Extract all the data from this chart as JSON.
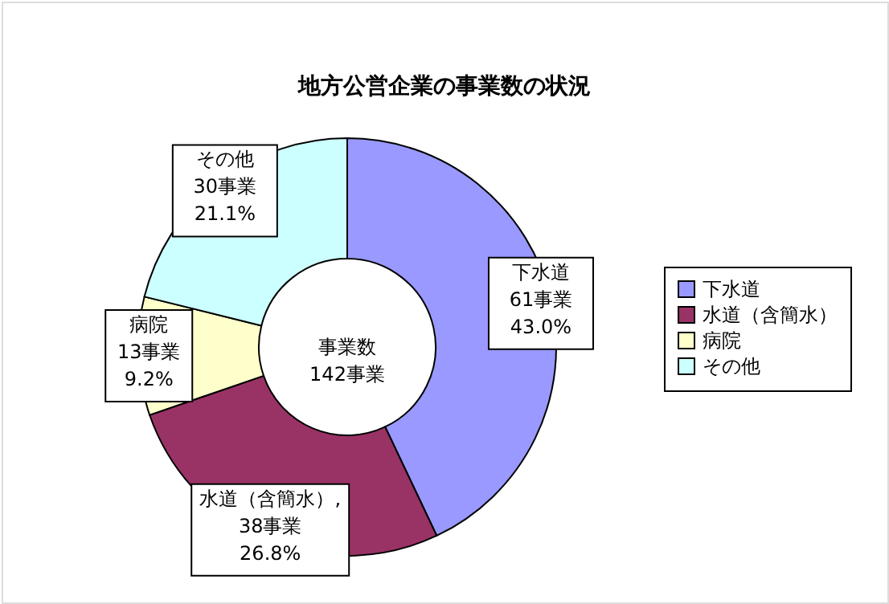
{
  "chart_data": {
    "type": "donut",
    "title": "地方公営企業の事業数の状況",
    "categories": [
      "下水道",
      "水道（含簡水）",
      "病院",
      "その他"
    ],
    "values": [
      61,
      38,
      13,
      30
    ],
    "colors": [
      "#9999ff",
      "#993366",
      "#ffffcc",
      "#ccffff"
    ],
    "value_labels": [
      "\n61事業\n43.0%",
      ",\n38事業\n26.8%",
      "\n13事業\n9.2%",
      "\n30事業\n21.1%"
    ],
    "annotations": [
      "事業数\n142事業"
    ],
    "legend": "right"
  }
}
